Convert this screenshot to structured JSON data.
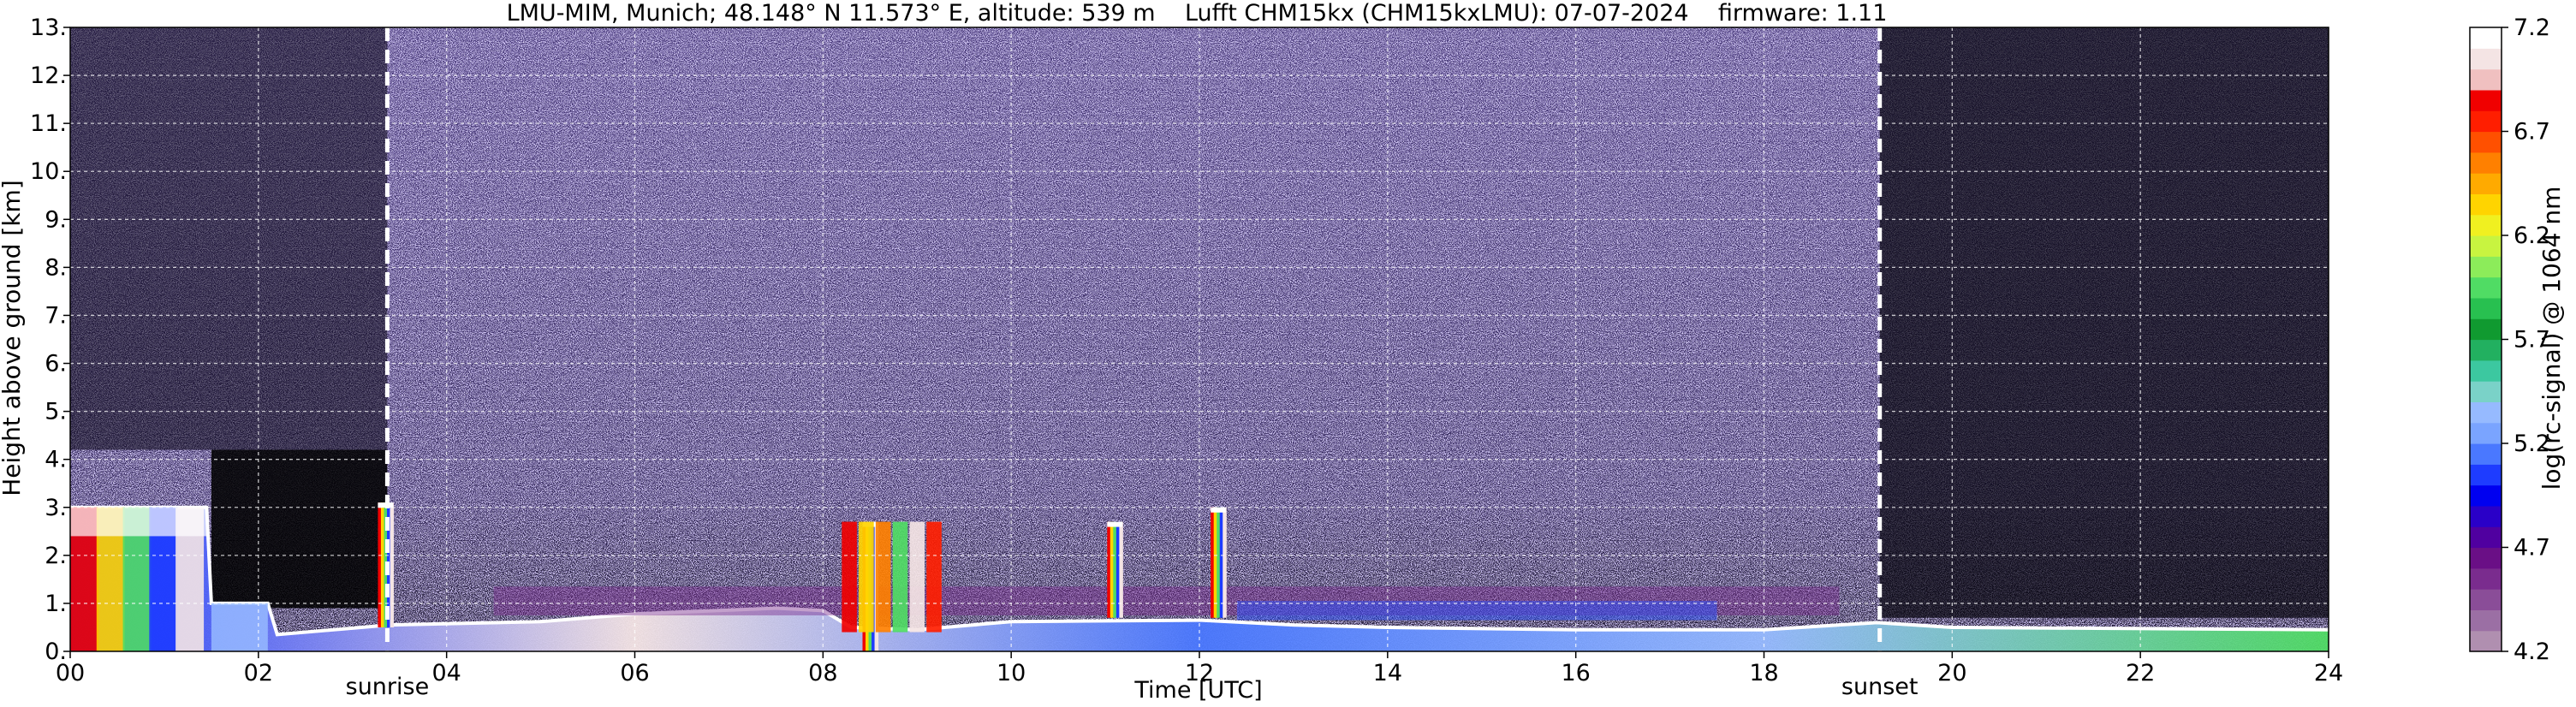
{
  "chart_data": {
    "type": "heatmap",
    "title": "LMU-MIM, Munich; 48.148° N 11.573° E, altitude: 539 m    Lufft CHM15kx (CHM15kxLMU): 07-07-2024    firmware: 1.11",
    "xlabel": "Time [UTC]",
    "ylabel": "Height above ground [km]",
    "xlim": [
      0,
      24
    ],
    "ylim": [
      0,
      13
    ],
    "x_ticks": [
      "00",
      "02",
      "04",
      "06",
      "08",
      "10",
      "12",
      "14",
      "16",
      "18",
      "20",
      "22",
      "24"
    ],
    "x_tick_values": [
      0,
      2,
      4,
      6,
      8,
      10,
      12,
      14,
      16,
      18,
      20,
      22,
      24
    ],
    "y_ticks": [
      "0.",
      "1.",
      "2.",
      "3.",
      "4.",
      "5.",
      "6.",
      "7.",
      "8.",
      "9.",
      "10.",
      "11.",
      "12.",
      "13."
    ],
    "y_tick_values": [
      0,
      1,
      2,
      3,
      4,
      5,
      6,
      7,
      8,
      9,
      10,
      11,
      12,
      13
    ],
    "grid": true,
    "events": [
      {
        "label": "sunrise",
        "time": 3.37
      },
      {
        "label": "sunset",
        "time": 19.23
      }
    ],
    "colorbar": {
      "label": "log(rc-signal) @ 1064 nm",
      "range": [
        4.2,
        7.2
      ],
      "tick_labels": [
        "4.2",
        "4.7",
        "5.2",
        "5.7",
        "6.2",
        "6.7",
        "7.2"
      ],
      "tick_values": [
        4.2,
        4.7,
        5.2,
        5.7,
        6.2,
        6.7,
        7.2
      ],
      "colors": [
        "#b08fb0",
        "#9b6fa4",
        "#8a4d98",
        "#7a2c8e",
        "#6a0f86",
        "#5000a0",
        "#2a00c8",
        "#0000f0",
        "#1e3cff",
        "#4a78ff",
        "#7aa4ff",
        "#96baff",
        "#7ad2c8",
        "#3cc8a0",
        "#22b060",
        "#109a30",
        "#28c050",
        "#50dc64",
        "#8cec5a",
        "#c8f440",
        "#f0f020",
        "#ffd400",
        "#ffaa00",
        "#ff8000",
        "#ff5000",
        "#ff1e00",
        "#f00000",
        "#f0c0c0",
        "#f4e4e4",
        "#ffffff"
      ]
    },
    "aerosol_layer_top_km": [
      [
        0.0,
        3.0
      ],
      [
        1.45,
        3.0
      ],
      [
        1.5,
        1.0
      ],
      [
        2.1,
        1.0
      ],
      [
        2.2,
        0.35
      ],
      [
        3.4,
        0.55
      ],
      [
        5.0,
        0.62
      ],
      [
        6.0,
        0.78
      ],
      [
        7.5,
        0.9
      ],
      [
        8.0,
        0.85
      ],
      [
        8.3,
        0.5
      ],
      [
        9.0,
        0.45
      ],
      [
        10.0,
        0.62
      ],
      [
        12.0,
        0.65
      ],
      [
        13.0,
        0.55
      ],
      [
        14.0,
        0.5
      ],
      [
        16.0,
        0.45
      ],
      [
        18.0,
        0.45
      ],
      [
        19.2,
        0.6
      ],
      [
        20.0,
        0.5
      ],
      [
        24.0,
        0.45
      ]
    ],
    "cloud_columns": [
      {
        "time": 8.5,
        "base_km": 0.0,
        "top_km": 2.7
      },
      {
        "time": 11.1,
        "base_km": 0.7,
        "top_km": 2.7
      },
      {
        "time": 12.2,
        "base_km": 0.7,
        "top_km": 3.0
      },
      {
        "time": 3.35,
        "base_km": 0.5,
        "top_km": 3.1
      }
    ]
  }
}
